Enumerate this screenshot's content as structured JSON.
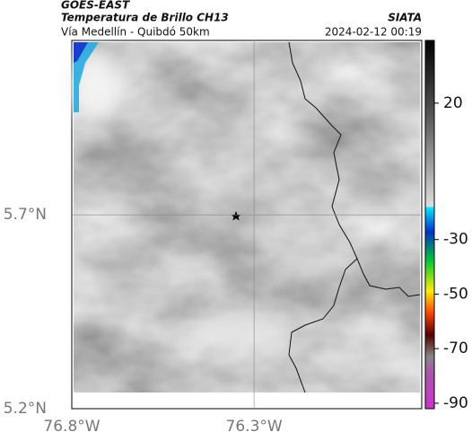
{
  "header": {
    "title": "GOES-EAST",
    "subtitle": "Temperatura de Brillo CH13",
    "region": "Vía Medellín - Quibdó 50km",
    "source": "SIATA",
    "datetime": "2024-02-12 00:19"
  },
  "map": {
    "xlim": [
      -76.8,
      -75.84
    ],
    "ylim": [
      5.2,
      6.15
    ],
    "xticks": [
      {
        "value": -76.8,
        "label": "76.8°W"
      },
      {
        "value": -76.3,
        "label": "76.3°W"
      }
    ],
    "yticks": [
      {
        "value": 5.7,
        "label": "5.7°N"
      },
      {
        "value": 5.2,
        "label": "5.2°N"
      }
    ],
    "grid": true
  },
  "colorbar": {
    "lim": [
      -92,
      43
    ],
    "ticks": [
      20,
      -30,
      -50,
      -70,
      -90
    ]
  }
}
